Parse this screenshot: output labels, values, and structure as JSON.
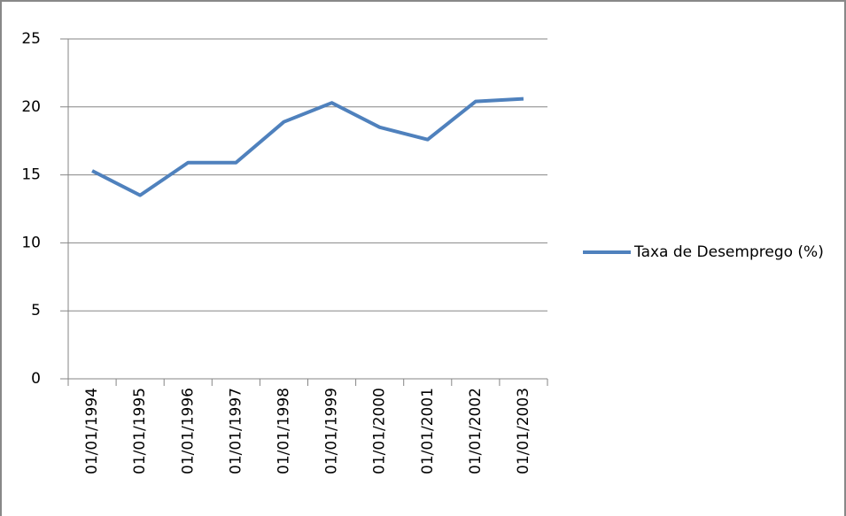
{
  "chart_data": {
    "type": "line",
    "categories": [
      "01/01/1994",
      "01/01/1995",
      "01/01/1996",
      "01/01/1997",
      "01/01/1998",
      "01/01/1999",
      "01/01/2000",
      "01/01/2001",
      "01/01/2002",
      "01/01/2003"
    ],
    "series": [
      {
        "name": "Taxa de Desemprego (%)",
        "color": "#4f81bd",
        "values": [
          15.3,
          13.5,
          15.9,
          15.9,
          18.9,
          20.3,
          18.5,
          17.6,
          20.4,
          20.6
        ]
      }
    ],
    "ylim": [
      0,
      25
    ],
    "yticks": [
      0,
      5,
      10,
      15,
      20,
      25
    ],
    "grid": true,
    "legend": "right"
  }
}
